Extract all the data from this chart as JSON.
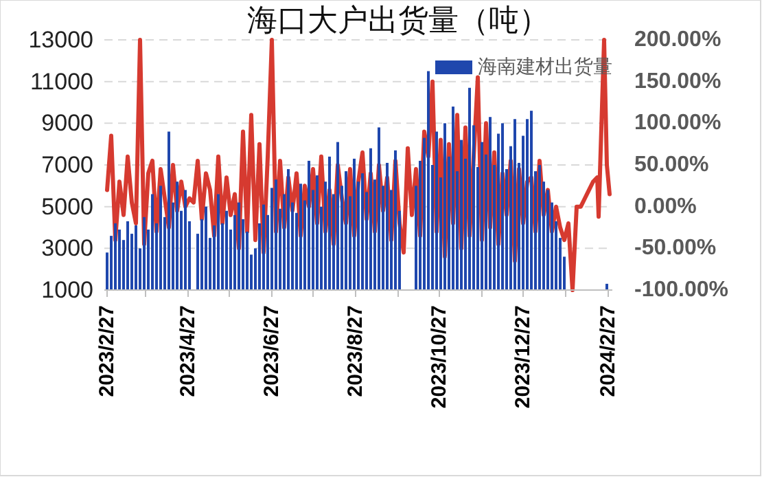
{
  "chart_data": {
    "type": "bar",
    "title": "海口大户出货量（吨）",
    "x": [
      "2023-02-27",
      "2023-03-02",
      "2023-03-05",
      "2023-03-08",
      "2023-03-11",
      "2023-03-14",
      "2023-03-17",
      "2023-03-20",
      "2023-03-23",
      "2023-03-26",
      "2023-03-29",
      "2023-04-01",
      "2023-04-04",
      "2023-04-07",
      "2023-04-10",
      "2023-04-13",
      "2023-04-16",
      "2023-04-19",
      "2023-04-22",
      "2023-04-25",
      "2023-04-28",
      "2023-05-01",
      "2023-05-04",
      "2023-05-07",
      "2023-05-10",
      "2023-05-13",
      "2023-05-16",
      "2023-05-19",
      "2023-05-22",
      "2023-05-25",
      "2023-05-28",
      "2023-05-31",
      "2023-06-03",
      "2023-06-06",
      "2023-06-09",
      "2023-06-12",
      "2023-06-15",
      "2023-06-18",
      "2023-06-21",
      "2023-06-24",
      "2023-06-27",
      "2023-06-30",
      "2023-07-03",
      "2023-07-06",
      "2023-07-09",
      "2023-07-12",
      "2023-07-15",
      "2023-07-18",
      "2023-07-21",
      "2023-07-24",
      "2023-07-27",
      "2023-07-30",
      "2023-08-02",
      "2023-08-05",
      "2023-08-08",
      "2023-08-11",
      "2023-08-14",
      "2023-08-17",
      "2023-08-20",
      "2023-08-23",
      "2023-08-26",
      "2023-08-29",
      "2023-09-01",
      "2023-09-04",
      "2023-09-07",
      "2023-09-10",
      "2023-09-13",
      "2023-09-16",
      "2023-09-19",
      "2023-09-22",
      "2023-09-25",
      "2023-09-28",
      "2023-10-01",
      "2023-10-04",
      "2023-10-07",
      "2023-10-10",
      "2023-10-13",
      "2023-10-16",
      "2023-10-19",
      "2023-10-22",
      "2023-10-25",
      "2023-10-28",
      "2023-10-31",
      "2023-11-03",
      "2023-11-06",
      "2023-11-09",
      "2023-11-12",
      "2023-11-15",
      "2023-11-18",
      "2023-11-21",
      "2023-11-24",
      "2023-11-27",
      "2023-11-30",
      "2023-12-03",
      "2023-12-06",
      "2023-12-09",
      "2023-12-12",
      "2023-12-15",
      "2023-12-18",
      "2023-12-21",
      "2023-12-24",
      "2023-12-27",
      "2023-12-30",
      "2024-01-02",
      "2024-01-05",
      "2024-01-08",
      "2024-01-11",
      "2024-01-14",
      "2024-01-17",
      "2024-01-20",
      "2024-01-23",
      "2024-01-26",
      "2024-02-26"
    ],
    "series": [
      {
        "name": "海南建材出货量",
        "type": "bar",
        "color": "#1f47ad",
        "values": [
          2800,
          3600,
          4200,
          3900,
          3400,
          4300,
          3700,
          4100,
          3000,
          4500,
          3900,
          5600,
          4200,
          6000,
          4500,
          8600,
          5200,
          6200,
          4800,
          5800,
          4300,
          null,
          3700,
          4400,
          5000,
          3500,
          4100,
          5600,
          4200,
          4800,
          3900,
          4600,
          5200,
          4400,
          3800,
          2700,
          3000,
          4200,
          5100,
          4600,
          5900,
          6300,
          4900,
          5600,
          6800,
          5200,
          4700,
          6100,
          5300,
          7200,
          5800,
          6500,
          5000,
          6200,
          7400,
          5600,
          8100,
          6000,
          6700,
          5500,
          7300,
          6200,
          6600,
          5700,
          7800,
          6300,
          8800,
          6000,
          7100,
          5800,
          7700,
          4800,
          null,
          null,
          null,
          6000,
          7200,
          8300,
          11500,
          7000,
          8600,
          6400,
          9000,
          7400,
          9800,
          6700,
          8200,
          7300,
          10700,
          8900,
          6900,
          8100,
          7500,
          9300,
          7000,
          8500,
          9000,
          6800,
          7900,
          9200,
          7100,
          8400,
          9200,
          9600,
          6700,
          7000,
          6200,
          5800,
          5200,
          4300,
          3500,
          2600,
          1300
        ]
      },
      {
        "type": "line",
        "axis": "y2",
        "color": "#d63a30",
        "x": [
          "2023-02-27",
          "2023-03-02",
          "2023-03-05",
          "2023-03-08",
          "2023-03-11",
          "2023-03-14",
          "2023-03-17",
          "2023-03-20",
          "2023-03-23",
          "2023-03-26",
          "2023-03-29",
          "2023-04-01",
          "2023-04-04",
          "2023-04-07",
          "2023-04-10",
          "2023-04-13",
          "2023-04-16",
          "2023-04-19",
          "2023-04-22",
          "2023-04-25",
          "2023-04-28",
          "2023-05-01",
          "2023-05-04",
          "2023-05-07",
          "2023-05-10",
          "2023-05-13",
          "2023-05-16",
          "2023-05-19",
          "2023-05-22",
          "2023-05-25",
          "2023-05-28",
          "2023-05-31",
          "2023-06-03",
          "2023-06-06",
          "2023-06-09",
          "2023-06-12",
          "2023-06-15",
          "2023-06-18",
          "2023-06-21",
          "2023-06-24",
          "2023-06-27",
          "2023-06-30",
          "2023-07-03",
          "2023-07-06",
          "2023-07-09",
          "2023-07-12",
          "2023-07-15",
          "2023-07-18",
          "2023-07-21",
          "2023-07-24",
          "2023-07-27",
          "2023-07-30",
          "2023-08-02",
          "2023-08-05",
          "2023-08-08",
          "2023-08-11",
          "2023-08-14",
          "2023-08-17",
          "2023-08-20",
          "2023-08-23",
          "2023-08-26",
          "2023-08-29",
          "2023-09-01",
          "2023-09-04",
          "2023-09-07",
          "2023-09-10",
          "2023-09-13",
          "2023-09-16",
          "2023-09-19",
          "2023-09-22",
          "2023-09-25",
          "2023-09-28",
          "2023-10-01",
          "2023-10-04",
          "2023-10-07",
          "2023-10-10",
          "2023-10-13",
          "2023-10-16",
          "2023-10-19",
          "2023-10-22",
          "2023-10-25",
          "2023-10-28",
          "2023-10-31",
          "2023-11-03",
          "2023-11-06",
          "2023-11-09",
          "2023-11-12",
          "2023-11-15",
          "2023-11-18",
          "2023-11-21",
          "2023-11-24",
          "2023-11-27",
          "2023-11-30",
          "2023-12-03",
          "2023-12-06",
          "2023-12-09",
          "2023-12-12",
          "2023-12-15",
          "2023-12-18",
          "2023-12-21",
          "2023-12-24",
          "2023-12-27",
          "2023-12-30",
          "2024-01-02",
          "2024-01-05",
          "2024-01-08",
          "2024-01-11",
          "2024-01-14",
          "2024-01-17",
          "2024-01-20",
          "2024-01-23",
          "2024-01-26",
          "2024-01-29",
          "2024-02-01",
          "2024-02-04",
          "2024-02-07",
          "2024-02-10",
          "2024-02-13",
          "2024-02-16",
          "2024-02-19",
          "2024-02-20",
          "2024-02-24",
          "2024-02-26",
          "2024-02-28"
        ],
        "values": [
          20,
          85,
          -40,
          30,
          -10,
          60,
          5,
          -20,
          200,
          -45,
          40,
          55,
          -30,
          45,
          10,
          -25,
          50,
          -5,
          30,
          0,
          10,
          5,
          55,
          -15,
          40,
          20,
          -35,
          60,
          -20,
          35,
          -10,
          15,
          -50,
          90,
          -30,
          110,
          -40,
          75,
          -55,
          60,
          200,
          -30,
          55,
          -25,
          35,
          -5,
          40,
          -35,
          25,
          0,
          45,
          -20,
          60,
          -30,
          20,
          -45,
          50,
          10,
          -20,
          45,
          -35,
          30,
          65,
          -15,
          40,
          -30,
          50,
          -5,
          35,
          -40,
          55,
          -20,
          -55,
          70,
          -10,
          45,
          -35,
          90,
          60,
          150,
          -30,
          80,
          -60,
          75,
          -20,
          110,
          -50,
          95,
          -35,
          60,
          155,
          -40,
          100,
          -25,
          65,
          -45,
          40,
          -10,
          55,
          -65,
          45,
          -20,
          30,
          35,
          -30,
          55,
          -10,
          20,
          -30,
          0,
          -25,
          -40,
          -20,
          -100,
          0,
          0,
          10,
          20,
          30,
          35,
          -12,
          200,
          50,
          15
        ]
      }
    ],
    "xlim": [
      "2023-02-25",
      "2024-03-01"
    ],
    "xticks": [
      {
        "value": "2023-02-27",
        "label": "2023/2/27"
      },
      {
        "value": "2023-03-27",
        "label": null
      },
      {
        "value": "2023-04-27",
        "label": "2023/4/27"
      },
      {
        "value": "2023-05-27",
        "label": null
      },
      {
        "value": "2023-06-27",
        "label": "2023/6/27"
      },
      {
        "value": "2023-07-27",
        "label": null
      },
      {
        "value": "2023-08-27",
        "label": "2023/8/27"
      },
      {
        "value": "2023-09-27",
        "label": null
      },
      {
        "value": "2023-10-27",
        "label": "2023/10/27"
      },
      {
        "value": "2023-11-27",
        "label": null
      },
      {
        "value": "2023-12-27",
        "label": "2023/12/27"
      },
      {
        "value": "2024-01-27",
        "label": null
      },
      {
        "value": "2024-02-27",
        "label": "2024/2/27"
      }
    ],
    "ylim": [
      1000,
      13000
    ],
    "yticks": [
      1000,
      3000,
      5000,
      7000,
      9000,
      11000,
      13000
    ],
    "y2lim": [
      -100,
      200
    ],
    "y2ticks": [
      {
        "value": -100,
        "label": "-100.00%"
      },
      {
        "value": -50,
        "label": "-50.00%"
      },
      {
        "value": 0,
        "label": "0.00%"
      },
      {
        "value": 50,
        "label": "50.00%"
      },
      {
        "value": 100,
        "label": "100.00%"
      },
      {
        "value": 150,
        "label": "150.00%"
      },
      {
        "value": 200,
        "label": "200.00%"
      }
    ],
    "grid": "y",
    "legend": "top right"
  }
}
